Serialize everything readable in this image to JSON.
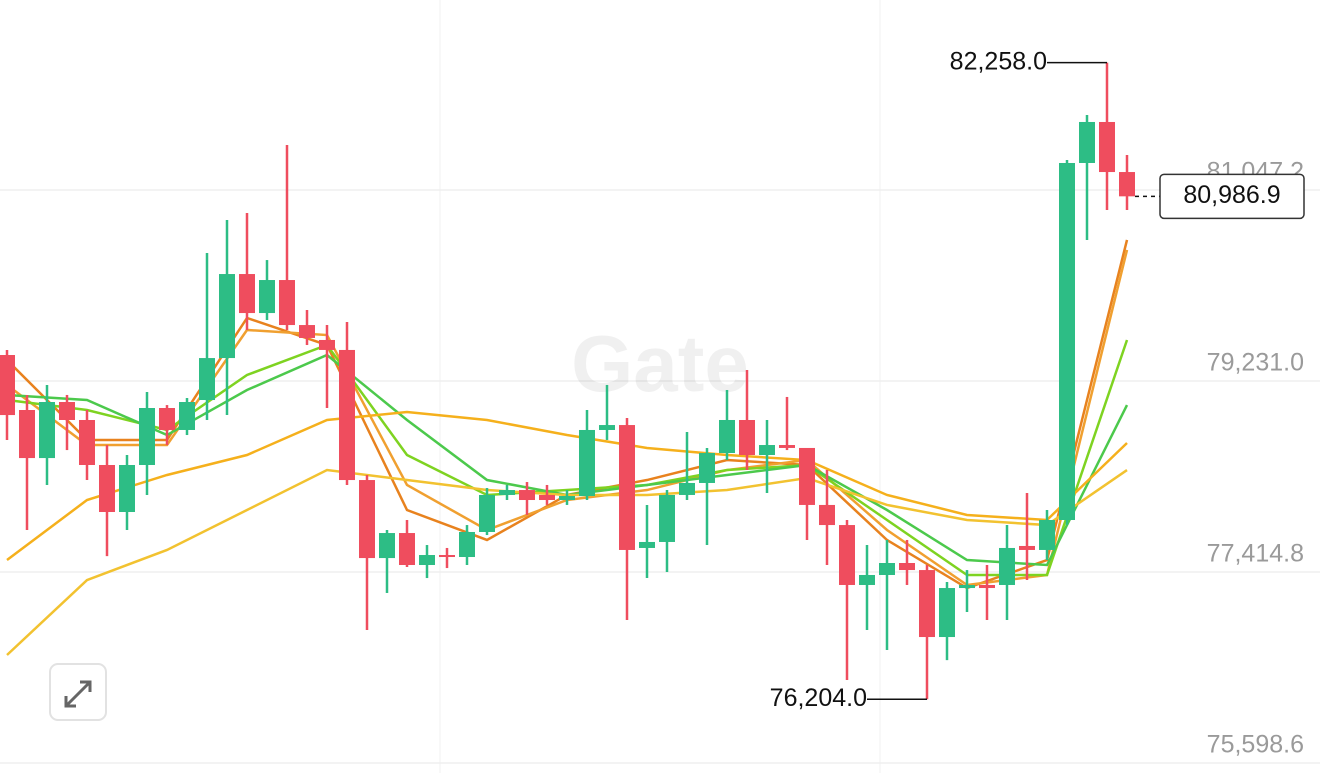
{
  "chart_data": {
    "type": "candlestick",
    "watermark": "Gate",
    "up_color": "#2dbd85",
    "down_color": "#ef4d5e",
    "open": [
      79478,
      78955,
      78498,
      79031,
      78860,
      78432,
      77985,
      78432,
      78974,
      78765,
      79050,
      79449,
      80248,
      79877,
      80191,
      79763,
      79621,
      79526,
      78289,
      77547,
      77785,
      77481,
      77576,
      77557,
      77795,
      78147,
      78194,
      78147,
      78099,
      78137,
      78765,
      78812,
      77643,
      77700,
      78147,
      78261,
      78546,
      78860,
      78527,
      78622,
      78594,
      78052,
      77861,
      77291,
      77386,
      77500,
      77433,
      76796,
      77262,
      77291,
      77291,
      77662,
      77624,
      77909,
      81304,
      81694,
      81218
    ],
    "high": [
      79526,
      79098,
      79193,
      79098,
      78955,
      78622,
      78527,
      79126,
      79002,
      79069,
      80448,
      80762,
      80828,
      80381,
      81475,
      79906,
      79763,
      79792,
      78337,
      77814,
      77909,
      77671,
      77643,
      77861,
      78213,
      78242,
      78270,
      78242,
      78194,
      78955,
      79193,
      78879,
      78052,
      78194,
      78746,
      78594,
      79145,
      79335,
      78860,
      79079,
      78594,
      78384,
      77909,
      77671,
      77719,
      77719,
      77481,
      77319,
      77433,
      77481,
      77861,
      78166,
      78004,
      81332,
      81760,
      82258,
      81380
    ],
    "low": [
      78670,
      77814,
      78242,
      78574,
      78289,
      77566,
      77814,
      78147,
      78622,
      78717,
      78860,
      78907,
      79716,
      79811,
      79716,
      79573,
      78974,
      78242,
      76863,
      77215,
      77462,
      77357,
      77452,
      77481,
      77766,
      78099,
      77957,
      78052,
      78052,
      78099,
      78670,
      76958,
      77357,
      77414,
      78099,
      77671,
      78479,
      78384,
      78166,
      78574,
      77719,
      77481,
      76387,
      76863,
      76673,
      77291,
      76204,
      76577,
      77034,
      76958,
      76958,
      77338,
      77528,
      77861,
      80572,
      80857,
      80857
    ],
    "close": [
      78907,
      78498,
      79031,
      78860,
      78432,
      77985,
      78432,
      78974,
      78765,
      79031,
      79449,
      80248,
      79877,
      80191,
      79763,
      79640,
      79526,
      78289,
      77547,
      77785,
      77481,
      77576,
      77557,
      77795,
      78147,
      78194,
      78099,
      78099,
      78137,
      78765,
      78812,
      77624,
      77700,
      78147,
      78261,
      78546,
      78860,
      78527,
      78622,
      78594,
      78052,
      77861,
      77291,
      77386,
      77500,
      77433,
      76796,
      77262,
      77291,
      77262,
      77643,
      77624,
      77909,
      81304,
      81694,
      81218,
      80986.9
    ],
    "last_price_label": "80,986.9",
    "annotations": [
      {
        "x": 55,
        "value": 82258,
        "label": "82,258.0"
      },
      {
        "x": 46,
        "value": 76204,
        "label": "76,204.0"
      }
    ],
    "series": [
      {
        "color": "#e8821e",
        "x": [
          0,
          4,
          8,
          12,
          16,
          20,
          24,
          28,
          32,
          36,
          40,
          44,
          48,
          52,
          56
        ],
        "values": [
          79430,
          78670,
          78670,
          79830,
          79573,
          78004,
          77719,
          78147,
          78289,
          78479,
          78432,
          77719,
          77262,
          77528,
          80572
        ]
      },
      {
        "color": "#f0a030",
        "x": [
          0,
          4,
          8,
          12,
          16,
          20,
          24,
          28,
          32,
          36,
          40,
          44,
          48,
          52,
          56
        ],
        "values": [
          79193,
          78622,
          78622,
          79716,
          79668,
          78242,
          77814,
          78099,
          78194,
          78384,
          78479,
          77814,
          77291,
          77386,
          80477
        ]
      },
      {
        "color": "#7ed321",
        "x": [
          0,
          4,
          8,
          12,
          16,
          20,
          24,
          28,
          32,
          36,
          40,
          44,
          48,
          52,
          56
        ],
        "values": [
          79050,
          78955,
          78765,
          79288,
          79573,
          78527,
          78147,
          78194,
          78242,
          78384,
          78432,
          77909,
          77386,
          77386,
          79621
        ]
      },
      {
        "color": "#4cc94c",
        "x": [
          0,
          4,
          8,
          12,
          16,
          20,
          24,
          28,
          32,
          36,
          40,
          44,
          48,
          52,
          56
        ],
        "values": [
          79098,
          79050,
          78717,
          79145,
          79478,
          78860,
          78289,
          78147,
          78242,
          78337,
          78432,
          78004,
          77528,
          77481,
          79002
        ]
      },
      {
        "color": "#f5b01c",
        "x": [
          0,
          4,
          8,
          12,
          16,
          20,
          24,
          28,
          32,
          36,
          40,
          44,
          48,
          52,
          56
        ],
        "values": [
          77528,
          78099,
          78337,
          78527,
          78860,
          78936,
          78860,
          78717,
          78594,
          78527,
          78479,
          78147,
          77957,
          77909,
          78641
        ]
      },
      {
        "color": "#f2c230",
        "x": [
          0,
          4,
          8,
          12,
          16,
          20,
          24,
          28,
          32,
          36,
          40,
          44,
          48,
          52,
          56
        ],
        "values": [
          76625,
          77338,
          77624,
          78004,
          78384,
          78289,
          78194,
          78147,
          78147,
          78194,
          78308,
          78052,
          77909,
          77861,
          78384
        ]
      }
    ],
    "ylim": [
      75503,
      82854
    ],
    "yticks": [
      {
        "value": 81047.2,
        "label": "81,047.2"
      },
      {
        "value": 79231.0,
        "label": "79,231.0"
      },
      {
        "value": 77414.8,
        "label": "77,414.8"
      },
      {
        "value": 75598.6,
        "label": "75,598.6"
      }
    ],
    "grid": true
  }
}
